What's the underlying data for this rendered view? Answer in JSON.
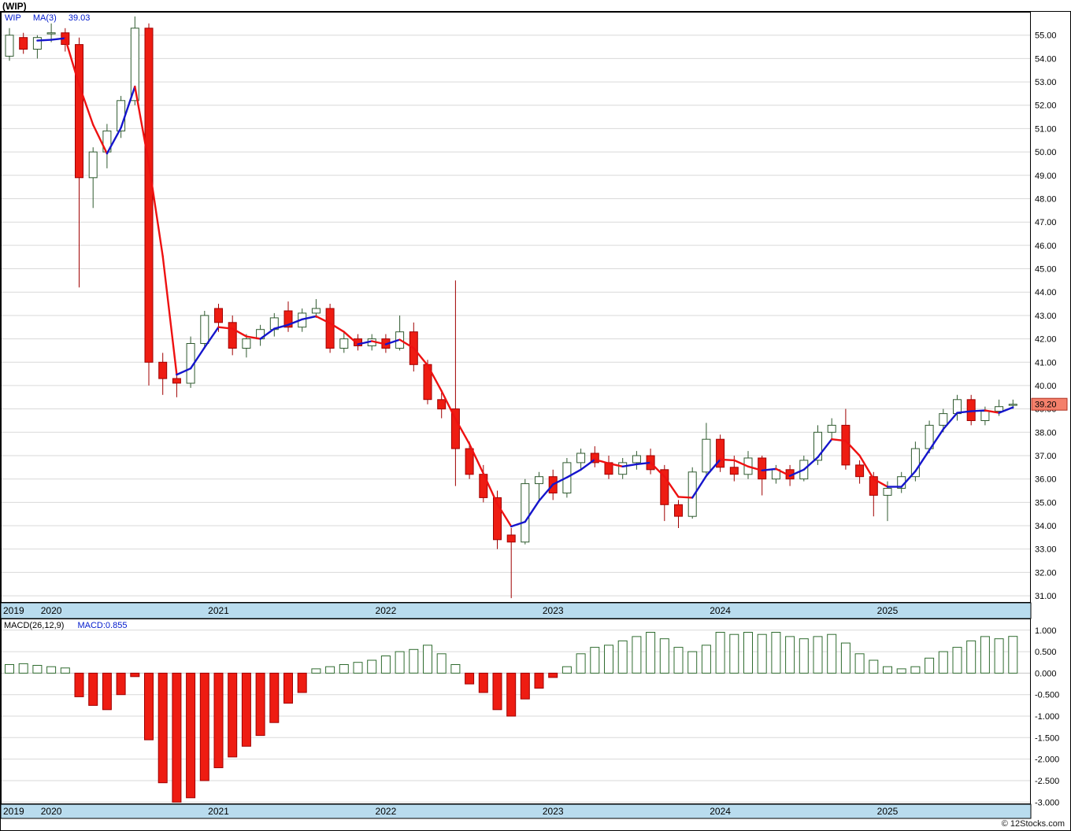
{
  "title": "(WIP)",
  "legend": {
    "symbol": "WIP",
    "ma_label": "MA(3)",
    "ma_value": "39.03"
  },
  "macd_legend": {
    "label": "MACD(26,12,9)",
    "value_label": "MACD:0.855"
  },
  "copyright": "© 12Stocks.com",
  "last_price_label": "39.20",
  "colors": {
    "grid": "#d9d9d9",
    "up_fill": "#ffffff",
    "up_stroke": "#2f5a2f",
    "down_fill": "#ee1c12",
    "down_stroke": "#a00000",
    "ma_up": "#1515cc",
    "ma_down": "#ee1111",
    "band_fill": "#b9dcee",
    "macd_pos_fill": "#ffffff",
    "macd_pos_stroke": "#2f6b2f",
    "tag_fill": "#f4806b",
    "tag_stroke": "#b03020",
    "legend_blue": "#0019cc"
  },
  "chart_data": [
    {
      "type": "candlestick",
      "title": "WIP monthly price with MA(3) overlay",
      "legend_position": "top-left",
      "grid": "horizontal-only",
      "x_axis_years": [
        "2019",
        "2020",
        "2021",
        "2022",
        "2023",
        "2024",
        "2025"
      ],
      "ylim": [
        30.7,
        56.0
      ],
      "y_ticks": [
        55,
        54,
        53,
        52,
        51,
        50,
        49,
        48,
        47,
        46,
        45,
        44,
        43,
        42,
        41,
        40,
        39,
        38,
        37,
        36,
        35,
        34,
        33,
        32,
        31
      ],
      "overlay": {
        "name": "MA(3)",
        "period": 3,
        "last_value": 39.03
      },
      "last_close": 39.2,
      "columns": [
        "month",
        "open",
        "high",
        "low",
        "close"
      ],
      "candles": [
        [
          "2019-10",
          54.1,
          55.3,
          53.9,
          55.0
        ],
        [
          "2019-11",
          54.9,
          55.1,
          54.2,
          54.4
        ],
        [
          "2019-12",
          54.4,
          55.0,
          54.0,
          54.9
        ],
        [
          "2020-01",
          55.1,
          55.5,
          54.7,
          55.1
        ],
        [
          "2020-02",
          55.1,
          55.3,
          54.3,
          54.6
        ],
        [
          "2020-03",
          54.6,
          54.9,
          44.2,
          48.9
        ],
        [
          "2020-04",
          48.9,
          50.2,
          47.6,
          50.0
        ],
        [
          "2020-05",
          50.0,
          51.2,
          49.3,
          50.9
        ],
        [
          "2020-06",
          50.9,
          52.4,
          50.6,
          52.2
        ],
        [
          "2020-07",
          52.2,
          55.8,
          52.0,
          55.3
        ],
        [
          "2020-08",
          55.3,
          55.5,
          40.0,
          41.0
        ],
        [
          "2020-09",
          41.0,
          41.4,
          39.6,
          40.3
        ],
        [
          "2020-10",
          40.3,
          40.6,
          39.5,
          40.1
        ],
        [
          "2020-11",
          40.1,
          42.1,
          39.9,
          41.8
        ],
        [
          "2020-12",
          41.8,
          43.2,
          41.6,
          43.0
        ],
        [
          "2021-01",
          43.3,
          43.5,
          42.3,
          42.7
        ],
        [
          "2021-02",
          42.7,
          43.0,
          41.3,
          41.6
        ],
        [
          "2021-03",
          41.6,
          42.2,
          41.2,
          42.0
        ],
        [
          "2021-04",
          42.0,
          42.6,
          41.7,
          42.4
        ],
        [
          "2021-05",
          42.4,
          43.1,
          42.1,
          42.9
        ],
        [
          "2021-06",
          43.2,
          43.6,
          42.3,
          42.5
        ],
        [
          "2021-07",
          42.5,
          43.3,
          42.3,
          43.1
        ],
        [
          "2021-08",
          43.1,
          43.7,
          42.9,
          43.3
        ],
        [
          "2021-09",
          43.3,
          43.5,
          41.4,
          41.6
        ],
        [
          "2021-10",
          41.6,
          42.3,
          41.4,
          42.0
        ],
        [
          "2021-11",
          42.0,
          42.2,
          41.5,
          41.7
        ],
        [
          "2021-12",
          41.7,
          42.2,
          41.5,
          42.0
        ],
        [
          "2022-01",
          42.0,
          42.2,
          41.4,
          41.6
        ],
        [
          "2022-02",
          41.6,
          43.0,
          41.5,
          42.3
        ],
        [
          "2022-03",
          42.3,
          42.7,
          40.6,
          40.9
        ],
        [
          "2022-04",
          40.9,
          41.1,
          39.2,
          39.4
        ],
        [
          "2022-05",
          39.4,
          39.7,
          38.6,
          39.0
        ],
        [
          "2022-06",
          39.0,
          44.5,
          35.7,
          37.3
        ],
        [
          "2022-07",
          37.3,
          37.6,
          36.0,
          36.2
        ],
        [
          "2022-08",
          36.2,
          36.6,
          35.0,
          35.2
        ],
        [
          "2022-09",
          35.2,
          35.5,
          33.0,
          33.4
        ],
        [
          "2022-10",
          33.6,
          33.9,
          30.9,
          33.3
        ],
        [
          "2022-11",
          33.3,
          36.0,
          33.2,
          35.8
        ],
        [
          "2022-12",
          35.8,
          36.3,
          35.1,
          36.1
        ],
        [
          "2023-01",
          36.1,
          36.4,
          35.1,
          35.4
        ],
        [
          "2023-02",
          35.4,
          36.9,
          35.2,
          36.7
        ],
        [
          "2023-03",
          36.7,
          37.3,
          36.4,
          37.1
        ],
        [
          "2023-04",
          37.1,
          37.4,
          36.5,
          36.7
        ],
        [
          "2023-05",
          36.7,
          37.0,
          36.0,
          36.2
        ],
        [
          "2023-06",
          36.2,
          36.9,
          36.0,
          36.7
        ],
        [
          "2023-07",
          36.7,
          37.2,
          36.4,
          37.0
        ],
        [
          "2023-08",
          37.0,
          37.3,
          36.2,
          36.4
        ],
        [
          "2023-09",
          36.4,
          36.6,
          34.2,
          34.9
        ],
        [
          "2023-10",
          34.9,
          35.1,
          33.9,
          34.4
        ],
        [
          "2023-11",
          34.4,
          36.5,
          34.3,
          36.3
        ],
        [
          "2023-12",
          36.3,
          38.4,
          36.2,
          37.7
        ],
        [
          "2024-01",
          37.7,
          37.9,
          36.3,
          36.5
        ],
        [
          "2024-02",
          36.5,
          37.0,
          35.9,
          36.2
        ],
        [
          "2024-03",
          36.2,
          37.2,
          36.0,
          36.9
        ],
        [
          "2024-04",
          36.9,
          37.0,
          35.3,
          36.0
        ],
        [
          "2024-05",
          36.0,
          36.6,
          35.8,
          36.4
        ],
        [
          "2024-06",
          36.4,
          36.6,
          35.7,
          36.0
        ],
        [
          "2024-07",
          36.0,
          37.0,
          35.9,
          36.8
        ],
        [
          "2024-08",
          36.8,
          38.3,
          36.6,
          38.0
        ],
        [
          "2024-09",
          38.0,
          38.6,
          37.7,
          38.3
        ],
        [
          "2024-10",
          38.3,
          39.0,
          36.4,
          36.6
        ],
        [
          "2024-11",
          36.6,
          36.8,
          35.8,
          36.1
        ],
        [
          "2024-12",
          36.1,
          36.3,
          34.4,
          35.3
        ],
        [
          "2025-01",
          35.3,
          35.9,
          34.2,
          35.6
        ],
        [
          "2025-02",
          35.6,
          36.3,
          35.4,
          36.1
        ],
        [
          "2025-03",
          36.1,
          37.6,
          35.9,
          37.3
        ],
        [
          "2025-04",
          37.3,
          38.5,
          37.1,
          38.3
        ],
        [
          "2025-05",
          38.3,
          39.0,
          38.0,
          38.8
        ],
        [
          "2025-06",
          38.8,
          39.6,
          38.5,
          39.4
        ],
        [
          "2025-07",
          39.4,
          39.6,
          38.3,
          38.5
        ],
        [
          "2025-08",
          38.5,
          39.1,
          38.3,
          38.9
        ],
        [
          "2025-09",
          38.9,
          39.4,
          38.7,
          39.1
        ],
        [
          "2025-10",
          39.2,
          39.4,
          39.0,
          39.2
        ]
      ]
    },
    {
      "type": "bar",
      "title": "MACD(26,12,9) histogram",
      "last_value": 0.855,
      "ylim": [
        -3.05,
        1.27
      ],
      "y_ticks": [
        1.0,
        0.5,
        0.0,
        -0.5,
        -1.0,
        -1.5,
        -2.0,
        -2.5,
        -3.0
      ],
      "values": [
        0.2,
        0.22,
        0.18,
        0.15,
        0.12,
        -0.55,
        -0.75,
        -0.85,
        -0.5,
        -0.08,
        -1.55,
        -2.55,
        -3.0,
        -2.9,
        -2.5,
        -2.2,
        -1.95,
        -1.7,
        -1.45,
        -1.15,
        -0.7,
        -0.45,
        0.1,
        0.15,
        0.2,
        0.25,
        0.3,
        0.4,
        0.5,
        0.55,
        0.65,
        0.45,
        0.2,
        -0.25,
        -0.45,
        -0.85,
        -1.0,
        -0.6,
        -0.35,
        -0.1,
        0.15,
        0.45,
        0.6,
        0.65,
        0.75,
        0.85,
        0.95,
        0.8,
        0.6,
        0.5,
        0.65,
        0.95,
        0.9,
        0.95,
        0.9,
        0.95,
        0.85,
        0.8,
        0.85,
        0.9,
        0.7,
        0.45,
        0.3,
        0.15,
        0.1,
        0.15,
        0.35,
        0.5,
        0.6,
        0.75,
        0.85,
        0.8,
        0.855
      ]
    }
  ]
}
